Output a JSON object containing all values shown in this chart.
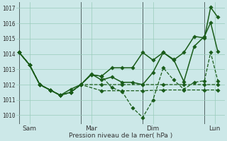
{
  "bg_color": "#cce8e8",
  "grid_color": "#99ccbb",
  "line_color_dark": "#1a5c1a",
  "line_color_light": "#2d8b2d",
  "x_tick_labels": [
    "Sam",
    "Mar",
    "Dim",
    "Lun"
  ],
  "x_tick_positions": [
    0.5,
    3.5,
    6.5,
    9.5
  ],
  "x_vline_positions": [
    0,
    3,
    6,
    9
  ],
  "ylim": [
    1009.4,
    1017.4
  ],
  "yticks": [
    1010,
    1011,
    1012,
    1013,
    1014,
    1015,
    1016,
    1017
  ],
  "xlabel": "Pression niveau de la mer( hPa )",
  "xlim": [
    -0.15,
    10.0
  ],
  "series": [
    {
      "style": "solid",
      "x": [
        0,
        0.5,
        1.0,
        1.5,
        2.0,
        2.5,
        3.0,
        3.5,
        4.0,
        4.5,
        5.0,
        5.5,
        6.0,
        6.5,
        7.0,
        7.5,
        8.0,
        8.5,
        9.0,
        9.3,
        9.65
      ],
      "y": [
        1014.1,
        1013.3,
        1012.0,
        1011.65,
        1011.3,
        1011.5,
        1012.0,
        1012.65,
        1012.55,
        1013.1,
        1013.1,
        1013.1,
        1014.1,
        1013.6,
        1014.1,
        1013.6,
        1014.1,
        1015.15,
        1015.05,
        1017.05,
        1016.4
      ]
    },
    {
      "style": "dashed",
      "x": [
        0,
        0.5,
        1.0,
        1.5,
        2.0,
        2.5,
        3.0,
        3.5,
        4.0,
        4.5,
        5.0,
        5.5,
        6.0,
        6.5,
        7.0,
        7.5,
        8.0,
        8.5,
        9.0,
        9.3,
        9.65
      ],
      "y": [
        1014.1,
        1013.3,
        1012.0,
        1011.65,
        1011.3,
        1011.5,
        1012.0,
        1012.65,
        1012.55,
        1011.8,
        1011.55,
        1010.5,
        1009.85,
        1011.0,
        1013.1,
        1012.3,
        1011.7,
        1012.15,
        1012.25,
        1014.1,
        1012.25
      ]
    },
    {
      "style": "dashed",
      "x": [
        0,
        0.5,
        1.0,
        1.5,
        2.0,
        2.5,
        3.0,
        4.0,
        5.0,
        6.0,
        7.0,
        8.0,
        9.0,
        9.65
      ],
      "y": [
        1014.1,
        1013.3,
        1012.0,
        1011.65,
        1011.3,
        1011.5,
        1012.0,
        1012.0,
        1012.0,
        1012.0,
        1012.0,
        1012.0,
        1012.0,
        1012.0
      ]
    },
    {
      "style": "dashed",
      "x": [
        0,
        0.5,
        1.0,
        1.5,
        2.0,
        2.5,
        3.0,
        4.0,
        5.0,
        6.0,
        7.0,
        8.0,
        9.0,
        9.65
      ],
      "y": [
        1014.1,
        1013.3,
        1012.0,
        1011.65,
        1011.3,
        1011.5,
        1012.0,
        1011.6,
        1011.6,
        1011.6,
        1011.65,
        1011.65,
        1011.65,
        1011.65
      ]
    },
    {
      "style": "solid",
      "x": [
        0,
        0.5,
        1.0,
        1.5,
        2.0,
        2.5,
        3.0,
        3.5,
        4.0,
        4.5,
        5.0,
        5.5,
        6.0,
        6.5,
        7.0,
        7.5,
        8.0,
        8.5,
        9.0,
        9.3,
        9.65
      ],
      "y": [
        1014.1,
        1013.3,
        1012.0,
        1011.65,
        1011.3,
        1011.7,
        1012.0,
        1012.7,
        1012.3,
        1012.5,
        1012.15,
        1012.15,
        1012.0,
        1012.8,
        1014.1,
        1013.65,
        1012.2,
        1014.5,
        1015.15,
        1016.05,
        1014.15
      ]
    }
  ]
}
